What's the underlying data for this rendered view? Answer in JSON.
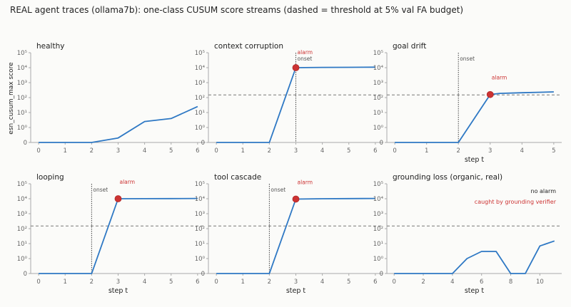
{
  "figure_title": "REAL agent traces (ollama7b): one-class CUSUM score streams (dashed = threshold at 5% val FA budget)",
  "colors": {
    "line": "#2e78c4",
    "alarm": "#cc3333",
    "threshold": "#777777",
    "onset": "#444444",
    "axis": "#aaaaaa",
    "text": "#222222",
    "tick": "#666666"
  },
  "shared_ylabel": "esn_cusum_max score",
  "y_scale": "symlog",
  "y_ticks": [
    {
      "value": 0,
      "label": "0"
    },
    {
      "value": 1,
      "label": "10⁰"
    },
    {
      "value": 10,
      "label": "10¹"
    },
    {
      "value": 100,
      "label": "10²"
    },
    {
      "value": 1000,
      "label": "10³"
    },
    {
      "value": 10000,
      "label": "10⁴"
    },
    {
      "value": 100000,
      "label": "10⁵"
    }
  ],
  "chart_data": [
    {
      "type": "line",
      "title": "healthy",
      "xlabel": "",
      "x": [
        0,
        1,
        2,
        3,
        4,
        5,
        6
      ],
      "y": [
        0,
        0,
        0,
        0.3,
        2.5,
        4,
        25
      ],
      "xlim": [
        -0.3,
        6.3
      ],
      "xticks": [
        0,
        1,
        2,
        3,
        4,
        5,
        6
      ],
      "threshold": null,
      "onset_x": null,
      "onset_label": "",
      "alarm": null,
      "alarm_label": "",
      "notes": []
    },
    {
      "type": "line",
      "title": "context corruption",
      "xlabel": "",
      "x": [
        0,
        1,
        2,
        3,
        4,
        5,
        6
      ],
      "y": [
        0,
        0,
        0,
        10000,
        10400,
        10600,
        10800
      ],
      "xlim": [
        -0.3,
        6.3
      ],
      "xticks": [
        0,
        1,
        2,
        3,
        4,
        5,
        6
      ],
      "threshold": 150,
      "onset_x": 3,
      "onset_label": "onset",
      "alarm": {
        "x": 3,
        "y": 10000
      },
      "alarm_label": "alarm",
      "notes": []
    },
    {
      "type": "line",
      "title": "goal drift",
      "xlabel": "step t",
      "x": [
        0,
        1,
        2,
        3,
        3.3,
        4,
        5
      ],
      "y": [
        0,
        0,
        0,
        160,
        190,
        210,
        240
      ],
      "xlim": [
        -0.25,
        5.25
      ],
      "xticks": [
        0,
        1,
        2,
        3,
        4,
        5
      ],
      "threshold": 150,
      "onset_x": 2,
      "onset_label": "onset",
      "alarm": {
        "x": 3,
        "y": 160
      },
      "alarm_label": "alarm",
      "notes": []
    },
    {
      "type": "line",
      "title": "looping",
      "xlabel": "step t",
      "x": [
        0,
        1,
        2,
        3,
        4,
        5,
        6
      ],
      "y": [
        0,
        0,
        0,
        10000,
        10100,
        10200,
        10400
      ],
      "xlim": [
        -0.3,
        6.3
      ],
      "xticks": [
        0,
        1,
        2,
        3,
        4,
        5,
        6
      ],
      "threshold": 150,
      "onset_x": 2,
      "onset_label": "onset",
      "alarm": {
        "x": 3,
        "y": 10000
      },
      "alarm_label": "alarm",
      "notes": []
    },
    {
      "type": "line",
      "title": "tool cascade",
      "xlabel": "step t",
      "x": [
        0,
        1,
        2,
        3,
        4,
        5,
        6
      ],
      "y": [
        0,
        0,
        0,
        9500,
        10000,
        10200,
        10400
      ],
      "xlim": [
        -0.3,
        6.3
      ],
      "xticks": [
        0,
        1,
        2,
        3,
        4,
        5,
        6
      ],
      "threshold": 150,
      "onset_x": 2,
      "onset_label": "onset",
      "alarm": {
        "x": 3,
        "y": 9500
      },
      "alarm_label": "alarm",
      "notes": []
    },
    {
      "type": "line",
      "title": "grounding loss (organic, real)",
      "xlabel": "step t",
      "x": [
        0,
        1,
        2,
        3,
        4,
        5,
        6,
        7,
        8,
        9,
        10,
        11
      ],
      "y": [
        0,
        0,
        0,
        0,
        0,
        1,
        3,
        3,
        0,
        0,
        7,
        15
      ],
      "xlim": [
        -0.5,
        11.5
      ],
      "xticks": [
        0,
        2,
        4,
        6,
        8,
        10
      ],
      "threshold": 150,
      "onset_x": null,
      "onset_label": "",
      "alarm": null,
      "alarm_label": "",
      "notes": [
        {
          "text": "no alarm",
          "color": "#222222"
        },
        {
          "text": "caught by grounding verifier",
          "color": "#cc3333"
        }
      ]
    }
  ]
}
